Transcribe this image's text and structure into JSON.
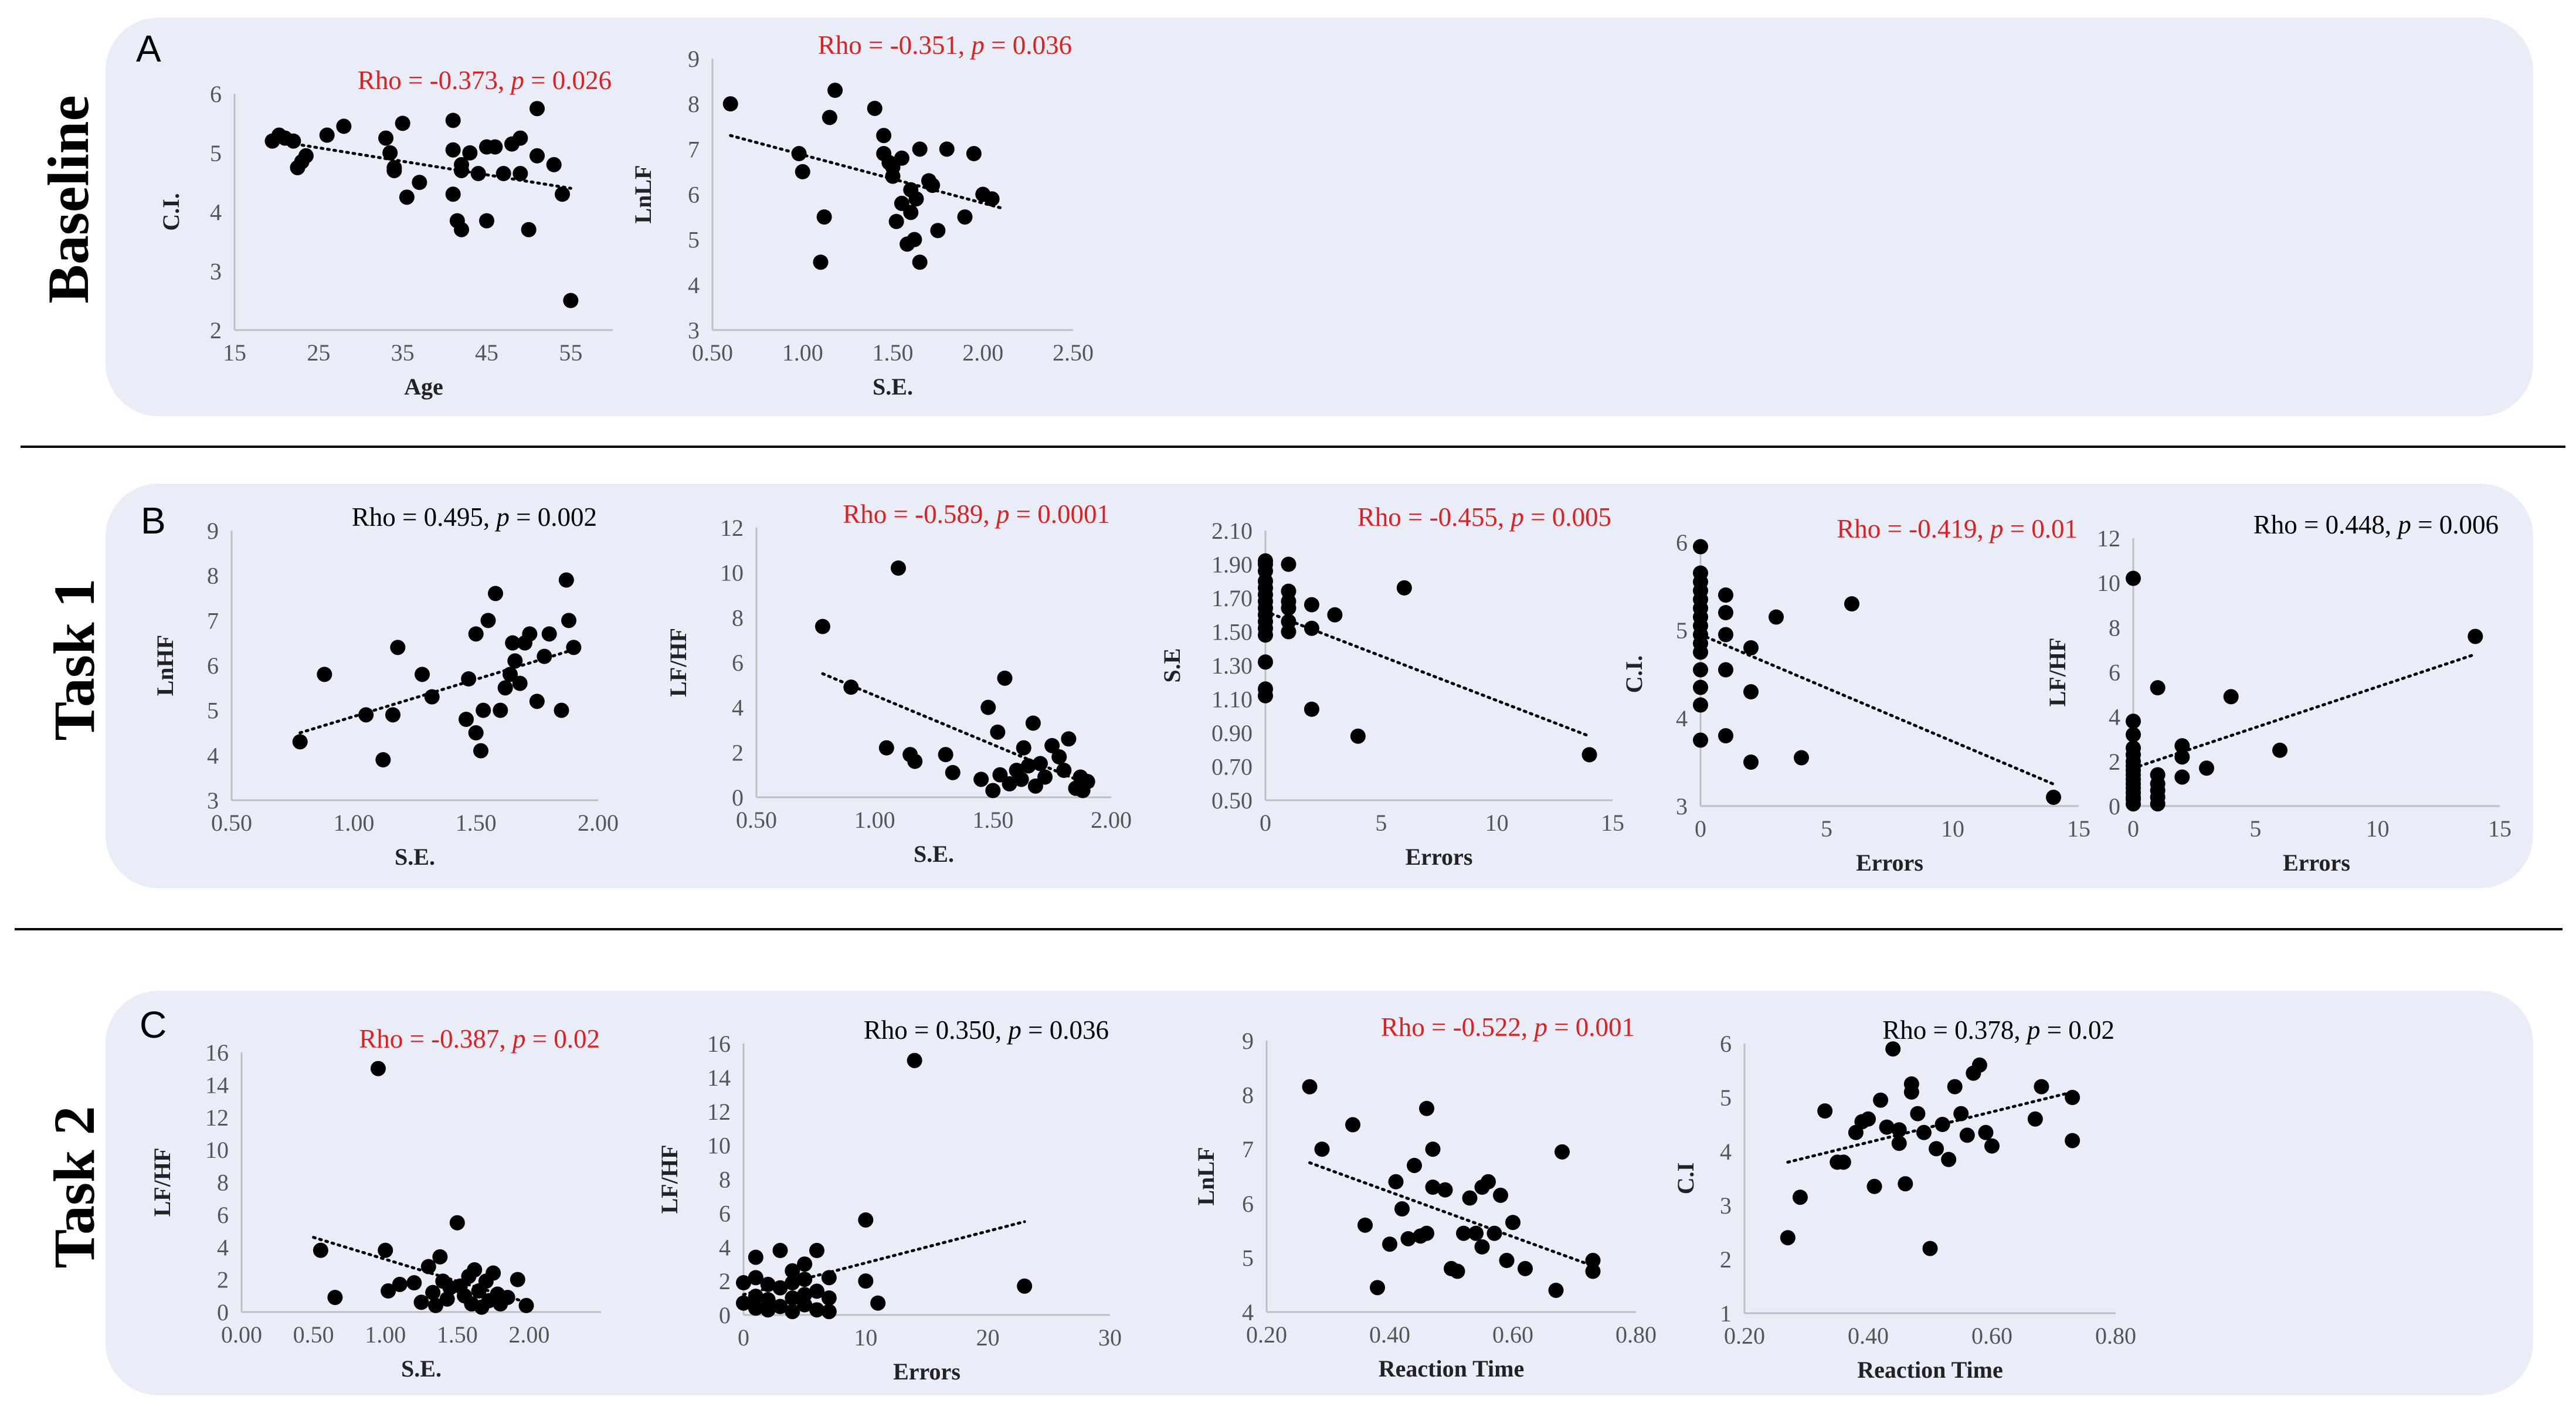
{
  "rows": [
    {
      "label": "Baseline",
      "letter": "A"
    },
    {
      "label": "Task 1",
      "letter": "B"
    },
    {
      "label": "Task 2",
      "letter": "C"
    }
  ],
  "chart_data": [
    {
      "id": "A1",
      "row": 0,
      "type": "scatter",
      "xlabel": "Age",
      "ylabel": "C.I.",
      "xlim": [
        15,
        60
      ],
      "xticks": [
        15,
        25,
        35,
        45,
        55
      ],
      "xtick_labels": [
        "15",
        "25",
        "35",
        "45",
        "55"
      ],
      "ylim": [
        2,
        6
      ],
      "yticks": [
        2,
        3,
        4,
        5,
        6
      ],
      "ytick_labels": [
        "2",
        "3",
        "4",
        "5",
        "6"
      ],
      "annotation_prefix": "Rho = ",
      "rho": "-0.373",
      "p_prefix": "p",
      "p_value": "= 0.026",
      "annotation_color": "#e02020",
      "trend": [
        [
          20,
          5.2
        ],
        [
          55,
          4.4
        ]
      ],
      "x": [
        19.5,
        20.3,
        21,
        22,
        22.5,
        23,
        23.5,
        26,
        28,
        33,
        33.5,
        34,
        34,
        35,
        35.5,
        37,
        41,
        41,
        41,
        41.5,
        42,
        42,
        42,
        43,
        44,
        45,
        45,
        46,
        47,
        48,
        49,
        49,
        50,
        51,
        51,
        53,
        54,
        55
      ],
      "y": [
        5.2,
        5.3,
        5.25,
        5.2,
        4.75,
        4.85,
        4.95,
        5.3,
        5.45,
        5.25,
        5.0,
        4.75,
        4.7,
        5.5,
        4.25,
        4.5,
        5.55,
        5.05,
        4.3,
        3.85,
        3.7,
        4.7,
        4.8,
        5.0,
        4.65,
        3.85,
        5.1,
        5.1,
        4.65,
        5.15,
        5.25,
        4.65,
        3.7,
        5.75,
        4.95,
        4.8,
        4.3,
        2.5
      ]
    },
    {
      "id": "A2",
      "row": 0,
      "type": "scatter",
      "xlabel": "S.E.",
      "ylabel": "LnLF",
      "xlim": [
        0.5,
        2.5
      ],
      "xticks": [
        0.5,
        1.0,
        1.5,
        2.0,
        2.5
      ],
      "xtick_labels": [
        "0.50",
        "1.00",
        "1.50",
        "2.00",
        "2.50"
      ],
      "ylim": [
        3,
        9
      ],
      "yticks": [
        3,
        4,
        5,
        6,
        7,
        8,
        9
      ],
      "ytick_labels": [
        "3",
        "4",
        "5",
        "6",
        "7",
        "8",
        "9"
      ],
      "annotation_prefix": "Rho = ",
      "rho": "-0.351",
      "p_prefix": "p",
      "p_value": "= 0.036",
      "annotation_color": "#e02020",
      "trend": [
        [
          0.6,
          7.3
        ],
        [
          2.1,
          5.7
        ]
      ],
      "x": [
        0.6,
        0.98,
        1.0,
        1.1,
        1.12,
        1.15,
        1.18,
        1.4,
        1.45,
        1.45,
        1.48,
        1.5,
        1.5,
        1.52,
        1.55,
        1.55,
        1.58,
        1.6,
        1.6,
        1.62,
        1.63,
        1.65,
        1.65,
        1.7,
        1.72,
        1.75,
        1.8,
        1.9,
        1.95,
        2.0,
        2.05
      ],
      "y": [
        8.0,
        6.9,
        6.5,
        4.5,
        5.5,
        7.7,
        8.3,
        7.9,
        7.3,
        6.9,
        6.7,
        6.6,
        6.4,
        5.4,
        5.8,
        6.8,
        4.9,
        5.6,
        6.1,
        5.0,
        5.9,
        7.0,
        4.5,
        6.3,
        6.2,
        5.2,
        7.0,
        5.5,
        6.9,
        6.0,
        5.9
      ]
    },
    {
      "id": "B1",
      "row": 1,
      "type": "scatter",
      "xlabel": "S.E.",
      "ylabel": "LnHF",
      "xlim": [
        0.5,
        2.0
      ],
      "xticks": [
        0.5,
        1.0,
        1.5,
        2.0
      ],
      "xtick_labels": [
        "0.50",
        "1.00",
        "1.50",
        "2.00"
      ],
      "ylim": [
        3,
        9
      ],
      "yticks": [
        3,
        4,
        5,
        6,
        7,
        8,
        9
      ],
      "ytick_labels": [
        "3",
        "4",
        "5",
        "6",
        "7",
        "8",
        "9"
      ],
      "annotation_prefix": "Rho = ",
      "rho": "0.495",
      "p_prefix": "p",
      "p_value": "= 0.002",
      "annotation_color": "#000000",
      "trend": [
        [
          0.78,
          4.5
        ],
        [
          1.93,
          6.4
        ]
      ],
      "x": [
        0.78,
        0.88,
        1.05,
        1.12,
        1.16,
        1.18,
        1.28,
        1.32,
        1.46,
        1.47,
        1.5,
        1.5,
        1.52,
        1.53,
        1.55,
        1.58,
        1.6,
        1.62,
        1.64,
        1.65,
        1.66,
        1.68,
        1.7,
        1.72,
        1.75,
        1.78,
        1.8,
        1.85,
        1.87,
        1.88,
        1.9
      ],
      "y": [
        4.3,
        5.8,
        4.9,
        3.9,
        4.9,
        6.4,
        5.8,
        5.3,
        4.8,
        5.7,
        6.7,
        4.5,
        4.1,
        5.0,
        7.0,
        7.6,
        5.0,
        5.5,
        5.8,
        6.5,
        6.1,
        5.6,
        6.5,
        6.7,
        5.2,
        6.2,
        6.7,
        5.0,
        7.9,
        7.0,
        6.4
      ]
    },
    {
      "id": "B2",
      "row": 1,
      "type": "scatter",
      "xlabel": "S.E.",
      "ylabel": "LF/HF",
      "xlim": [
        0.5,
        2.0
      ],
      "xticks": [
        0.5,
        1.0,
        1.5,
        2.0
      ],
      "xtick_labels": [
        "0.50",
        "1.00",
        "1.50",
        "2.00"
      ],
      "ylim": [
        0,
        12
      ],
      "yticks": [
        0,
        2,
        4,
        6,
        8,
        10,
        12
      ],
      "ytick_labels": [
        "0",
        "2",
        "4",
        "6",
        "8",
        "10",
        "12"
      ],
      "annotation_prefix": "Rho = ",
      "rho": "-0.589",
      "p_prefix": "p",
      "p_value": "= 0.0001",
      "annotation_color": "#e02020",
      "trend": [
        [
          0.78,
          5.5
        ],
        [
          1.92,
          0.5
        ]
      ],
      "x": [
        0.78,
        0.9,
        1.05,
        1.1,
        1.15,
        1.17,
        1.3,
        1.33,
        1.45,
        1.48,
        1.5,
        1.52,
        1.53,
        1.55,
        1.57,
        1.6,
        1.62,
        1.63,
        1.65,
        1.67,
        1.68,
        1.7,
        1.72,
        1.75,
        1.78,
        1.8,
        1.82,
        1.85,
        1.87,
        1.88,
        1.9
      ],
      "y": [
        7.6,
        4.9,
        2.2,
        10.2,
        1.9,
        1.6,
        1.9,
        1.1,
        0.8,
        4.0,
        0.3,
        2.9,
        1.0,
        5.3,
        0.6,
        1.2,
        0.8,
        2.2,
        1.4,
        3.3,
        0.5,
        1.5,
        0.9,
        2.3,
        1.8,
        1.2,
        2.6,
        0.4,
        0.9,
        0.3,
        0.7
      ]
    },
    {
      "id": "B3",
      "row": 1,
      "type": "scatter",
      "xlabel": "Errors",
      "ylabel": "S.E",
      "xlim": [
        0,
        15
      ],
      "xticks": [
        0,
        5,
        10,
        15
      ],
      "xtick_labels": [
        "0",
        "5",
        "10",
        "15"
      ],
      "ylim": [
        0.5,
        2.1
      ],
      "yticks": [
        0.5,
        0.7,
        0.9,
        1.1,
        1.3,
        1.5,
        1.7,
        1.9,
        2.1
      ],
      "ytick_labels": [
        "0.50",
        "0.70",
        "0.90",
        "1.10",
        "1.30",
        "1.50",
        "1.70",
        "1.90",
        "2.10"
      ],
      "annotation_prefix": "Rho = ",
      "rho": "-0.455",
      "p_prefix": "p",
      "p_value": "= 0.005",
      "annotation_color": "#e02020",
      "trend": [
        [
          0,
          1.62
        ],
        [
          14,
          0.88
        ]
      ],
      "x": [
        0,
        0,
        0,
        0,
        0,
        0,
        0,
        0,
        0,
        0,
        0,
        0,
        0,
        0,
        0,
        1,
        1,
        1,
        1,
        1,
        1,
        2,
        2,
        2,
        3,
        4,
        6,
        14
      ],
      "y": [
        1.92,
        1.9,
        1.86,
        1.8,
        1.76,
        1.72,
        1.68,
        1.64,
        1.6,
        1.56,
        1.52,
        1.48,
        1.32,
        1.16,
        1.12,
        1.9,
        1.74,
        1.68,
        1.64,
        1.56,
        1.5,
        1.66,
        1.52,
        1.04,
        1.6,
        0.88,
        1.76,
        0.77
      ]
    },
    {
      "id": "B4",
      "row": 1,
      "type": "scatter",
      "xlabel": "Errors",
      "ylabel": "C.I.",
      "xlim": [
        0,
        15
      ],
      "xticks": [
        0,
        5,
        10,
        15
      ],
      "xtick_labels": [
        "0",
        "5",
        "10",
        "15"
      ],
      "ylim": [
        3,
        6
      ],
      "yticks": [
        3,
        4,
        5,
        6
      ],
      "ytick_labels": [
        "3",
        "4",
        "5",
        "6"
      ],
      "annotation_prefix": "Rho = ",
      "rho": "-0.419",
      "p_prefix": "p",
      "p_value": "= 0.01",
      "annotation_color": "#e02020",
      "trend": [
        [
          0,
          4.95
        ],
        [
          14,
          3.25
        ]
      ],
      "x": [
        0,
        0,
        0,
        0,
        0,
        0,
        0,
        0,
        0,
        0,
        0,
        0,
        0,
        0,
        0,
        1,
        1,
        1,
        1,
        1,
        2,
        2,
        2,
        3,
        4,
        6,
        14
      ],
      "y": [
        5.95,
        5.65,
        5.55,
        5.45,
        5.35,
        5.25,
        5.15,
        5.05,
        4.95,
        4.85,
        4.75,
        4.55,
        4.35,
        4.15,
        3.75,
        5.4,
        5.2,
        4.95,
        4.55,
        3.8,
        4.8,
        4.3,
        3.5,
        5.15,
        3.55,
        5.3,
        3.1
      ]
    },
    {
      "id": "B5",
      "row": 1,
      "type": "scatter",
      "xlabel": "Errors",
      "ylabel": "LF/HF",
      "xlim": [
        0,
        15
      ],
      "xticks": [
        0,
        5,
        10,
        15
      ],
      "xtick_labels": [
        "0",
        "5",
        "10",
        "15"
      ],
      "ylim": [
        0,
        12
      ],
      "yticks": [
        0,
        2,
        4,
        6,
        8,
        10,
        12
      ],
      "ytick_labels": [
        "0",
        "2",
        "4",
        "6",
        "8",
        "10",
        "12"
      ],
      "annotation_prefix": "Rho = ",
      "rho": "0.448",
      "p_prefix": "p",
      "p_value": "= 0.006",
      "annotation_color": "#000000",
      "trend": [
        [
          0,
          1.7
        ],
        [
          14,
          6.8
        ]
      ],
      "x": [
        0,
        0,
        0,
        0,
        0,
        0,
        0,
        0,
        0,
        0,
        0,
        0,
        0,
        0,
        0,
        0,
        1,
        1,
        1,
        1,
        1,
        1,
        2,
        2,
        2,
        3,
        4,
        6,
        14
      ],
      "y": [
        10.2,
        3.8,
        3.2,
        2.6,
        2.3,
        2.0,
        1.8,
        1.6,
        1.4,
        1.2,
        1.0,
        0.8,
        0.6,
        0.4,
        0.3,
        0.1,
        5.3,
        1.4,
        1.0,
        0.7,
        0.4,
        0.1,
        2.7,
        2.2,
        1.3,
        1.7,
        4.9,
        2.5,
        7.6
      ]
    },
    {
      "id": "C1",
      "row": 2,
      "type": "scatter",
      "xlabel": "S.E.",
      "ylabel": "LF/HF",
      "xlim": [
        0,
        2.5
      ],
      "xticks": [
        0,
        0.5,
        1.0,
        1.5,
        2.0
      ],
      "xtick_labels": [
        "0.00",
        "0.50",
        "1.00",
        "1.50",
        "2.00"
      ],
      "ylim": [
        0,
        16
      ],
      "yticks": [
        0,
        2,
        4,
        6,
        8,
        10,
        12,
        14,
        16
      ],
      "ytick_labels": [
        "0",
        "2",
        "4",
        "6",
        "8",
        "10",
        "12",
        "14",
        "16"
      ],
      "annotation_prefix": "Rho = ",
      "rho": "-0.387",
      "p_prefix": "p",
      "p_value": "= 0.02",
      "annotation_color": "#e02020",
      "trend": [
        [
          0.5,
          4.6
        ],
        [
          1.98,
          0.6
        ]
      ],
      "x": [
        0.55,
        0.65,
        0.95,
        1.0,
        1.02,
        1.1,
        1.2,
        1.25,
        1.3,
        1.33,
        1.35,
        1.38,
        1.4,
        1.43,
        1.45,
        1.5,
        1.52,
        1.55,
        1.58,
        1.6,
        1.62,
        1.65,
        1.67,
        1.7,
        1.72,
        1.75,
        1.78,
        1.8,
        1.85,
        1.92,
        1.98
      ],
      "y": [
        3.8,
        0.9,
        15.0,
        3.8,
        1.3,
        1.7,
        1.8,
        0.6,
        2.8,
        1.2,
        0.4,
        3.4,
        1.9,
        0.8,
        1.5,
        5.5,
        1.6,
        1.0,
        2.2,
        0.5,
        2.6,
        1.3,
        0.3,
        1.9,
        0.7,
        2.4,
        1.1,
        0.5,
        0.9,
        2.0,
        0.4
      ]
    },
    {
      "id": "C2",
      "row": 2,
      "type": "scatter",
      "xlabel": "Errors",
      "ylabel": "LF/HF",
      "xlim": [
        0,
        30
      ],
      "xticks": [
        0,
        10,
        20,
        30
      ],
      "xtick_labels": [
        "0",
        "10",
        "20",
        "30"
      ],
      "ylim": [
        0,
        16
      ],
      "yticks": [
        0,
        2,
        4,
        6,
        8,
        10,
        12,
        14,
        16
      ],
      "ytick_labels": [
        "0",
        "2",
        "4",
        "6",
        "8",
        "10",
        "12",
        "14",
        "16"
      ],
      "annotation_prefix": "Rho = ",
      "rho": "0.350",
      "p_prefix": "p",
      "p_value": "= 0.036",
      "annotation_color": "#000000",
      "trend": [
        [
          0,
          1.2
        ],
        [
          23,
          5.5
        ]
      ],
      "x": [
        0,
        0,
        1,
        1,
        1,
        1,
        2,
        2,
        2,
        3,
        3,
        3,
        4,
        4,
        4,
        4,
        5,
        5,
        5,
        5,
        6,
        6,
        6,
        7,
        7,
        7,
        10,
        10,
        11,
        14,
        23
      ],
      "y": [
        1.9,
        0.7,
        3.4,
        2.2,
        1.1,
        0.4,
        1.8,
        0.9,
        0.3,
        3.8,
        1.6,
        0.5,
        2.6,
        1.9,
        1.0,
        0.2,
        3.0,
        2.1,
        1.2,
        0.6,
        3.8,
        1.4,
        0.3,
        2.2,
        1.0,
        0.2,
        5.6,
        2.0,
        0.7,
        15.0,
        1.7
      ]
    },
    {
      "id": "C3",
      "row": 2,
      "type": "scatter",
      "xlabel": "Reaction  Time",
      "ylabel": "LnLF",
      "xlim": [
        0.2,
        0.8
      ],
      "xticks": [
        0.2,
        0.4,
        0.6,
        0.8
      ],
      "xtick_labels": [
        "0.20",
        "0.40",
        "0.60",
        "0.80"
      ],
      "ylim": [
        4,
        9
      ],
      "yticks": [
        4,
        5,
        6,
        7,
        8,
        9
      ],
      "ytick_labels": [
        "4",
        "5",
        "6",
        "7",
        "8",
        "9"
      ],
      "annotation_prefix": "Rho = ",
      "rho": "-0.522",
      "p_prefix": "p",
      "p_value": "= 0.001",
      "annotation_color": "#e02020",
      "trend": [
        [
          0.27,
          6.75
        ],
        [
          0.73,
          4.85
        ]
      ],
      "x": [
        0.27,
        0.29,
        0.34,
        0.36,
        0.38,
        0.4,
        0.41,
        0.42,
        0.43,
        0.44,
        0.45,
        0.46,
        0.46,
        0.47,
        0.47,
        0.49,
        0.5,
        0.51,
        0.52,
        0.53,
        0.54,
        0.55,
        0.55,
        0.56,
        0.57,
        0.58,
        0.59,
        0.6,
        0.62,
        0.67,
        0.68,
        0.73,
        0.73
      ],
      "y": [
        8.15,
        7.0,
        7.45,
        5.6,
        4.45,
        5.25,
        6.4,
        5.9,
        5.35,
        6.7,
        5.4,
        7.75,
        5.45,
        7.0,
        6.3,
        6.25,
        4.8,
        4.75,
        5.45,
        6.1,
        5.45,
        6.3,
        5.2,
        6.4,
        5.45,
        6.15,
        4.95,
        5.65,
        4.8,
        4.4,
        6.95,
        4.95,
        4.75
      ]
    },
    {
      "id": "C4",
      "row": 2,
      "type": "scatter",
      "xlabel": "Reaction  Time",
      "ylabel": "C.I",
      "xlim": [
        0.2,
        0.8
      ],
      "xticks": [
        0.2,
        0.4,
        0.6,
        0.8
      ],
      "xtick_labels": [
        "0.20",
        "0.40",
        "0.60",
        "0.80"
      ],
      "ylim": [
        1,
        6
      ],
      "yticks": [
        1,
        2,
        3,
        4,
        5,
        6
      ],
      "ytick_labels": [
        "1",
        "2",
        "3",
        "4",
        "5",
        "6"
      ],
      "annotation_prefix": "Rho = ",
      "rho": "0.378",
      "p_prefix": "p",
      "p_value": "= 0.02",
      "annotation_color": "#000000",
      "trend": [
        [
          0.27,
          3.8
        ],
        [
          0.73,
          5.1
        ]
      ],
      "x": [
        0.27,
        0.29,
        0.33,
        0.35,
        0.36,
        0.38,
        0.39,
        0.4,
        0.41,
        0.42,
        0.43,
        0.44,
        0.45,
        0.45,
        0.46,
        0.47,
        0.47,
        0.48,
        0.49,
        0.5,
        0.51,
        0.52,
        0.53,
        0.54,
        0.55,
        0.56,
        0.57,
        0.58,
        0.59,
        0.6,
        0.67,
        0.68,
        0.73,
        0.73
      ],
      "y": [
        2.4,
        3.15,
        4.75,
        3.8,
        3.8,
        4.35,
        4.55,
        4.6,
        3.35,
        4.95,
        4.45,
        5.9,
        4.4,
        4.15,
        3.4,
        5.25,
        5.1,
        4.7,
        4.35,
        2.2,
        4.05,
        4.5,
        3.85,
        5.2,
        4.7,
        4.3,
        5.45,
        5.6,
        4.35,
        4.1,
        4.6,
        5.2,
        4.2,
        5.0
      ]
    }
  ]
}
